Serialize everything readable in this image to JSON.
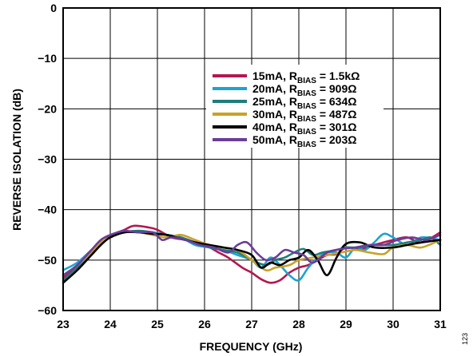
{
  "chart_data": {
    "type": "line",
    "xlabel": "FREQUENCY (GHz)",
    "ylabel": "REVERSE ISOLATION (dB)",
    "xlim": [
      23,
      31
    ],
    "ylim": [
      -60,
      0
    ],
    "xticks": [
      23,
      24,
      25,
      26,
      27,
      28,
      29,
      30,
      31
    ],
    "yticks": [
      0,
      -10,
      -20,
      -30,
      -40,
      -50,
      -60
    ],
    "ytick_labels": [
      "0",
      "−10",
      "−20",
      "−30",
      "−40",
      "−50",
      "−60"
    ],
    "grid": true,
    "legend_position": "upper-right",
    "figure_id": "123",
    "series": [
      {
        "legend_main": "15mA, R",
        "legend_sub": "BIAS",
        "legend_tail": " = 1.5kΩ",
        "color": "#b5174f",
        "x": [
          23.0,
          23.3,
          23.6,
          23.8,
          24.0,
          24.3,
          24.5,
          24.8,
          25.0,
          25.3,
          25.6,
          26.0,
          26.3,
          26.5,
          26.8,
          27.0,
          27.2,
          27.4,
          27.6,
          27.8,
          28.0,
          28.2,
          28.4,
          28.6,
          28.8,
          29.0,
          29.3,
          29.6,
          30.0,
          30.3,
          30.6,
          31.0
        ],
        "y": [
          -53.5,
          -51.5,
          -49.0,
          -46.8,
          -45.2,
          -44.0,
          -43.2,
          -43.5,
          -44.0,
          -45.5,
          -46.0,
          -47.0,
          -48.5,
          -49.5,
          -51.5,
          -52.5,
          -53.8,
          -54.5,
          -54.0,
          -52.5,
          -51.5,
          -51.0,
          -50.0,
          -49.0,
          -48.8,
          -47.5,
          -47.8,
          -47.0,
          -46.0,
          -45.5,
          -46.5,
          -44.5
        ]
      },
      {
        "legend_main": "20mA, R",
        "legend_sub": "BIAS",
        "legend_tail": " = 909Ω",
        "color": "#1ba3d3",
        "x": [
          23.0,
          23.3,
          23.6,
          23.8,
          24.0,
          24.3,
          24.6,
          24.9,
          25.2,
          25.5,
          25.8,
          26.1,
          26.4,
          26.7,
          27.0,
          27.2,
          27.4,
          27.6,
          27.8,
          28.0,
          28.2,
          28.4,
          28.6,
          28.8,
          29.0,
          29.2,
          29.4,
          29.6,
          29.8,
          30.0,
          30.3,
          30.6,
          31.0
        ],
        "y": [
          -52.0,
          -50.5,
          -48.0,
          -46.5,
          -45.5,
          -44.5,
          -44.2,
          -44.5,
          -45.0,
          -45.5,
          -47.0,
          -47.5,
          -48.0,
          -49.0,
          -50.0,
          -51.5,
          -49.5,
          -51.0,
          -53.0,
          -54.0,
          -51.5,
          -49.5,
          -48.5,
          -48.5,
          -49.5,
          -47.5,
          -48.0,
          -46.5,
          -44.8,
          -45.5,
          -47.0,
          -45.5,
          -46.0
        ]
      },
      {
        "legend_main": "25mA, R",
        "legend_sub": "BIAS",
        "legend_tail": " = 634Ω",
        "color": "#1f7d7a",
        "x": [
          23.0,
          23.3,
          23.6,
          23.8,
          24.0,
          24.3,
          24.6,
          24.9,
          25.2,
          25.5,
          25.8,
          26.1,
          26.4,
          26.7,
          27.0,
          27.3,
          27.5,
          27.7,
          27.9,
          28.1,
          28.3,
          28.5,
          28.8,
          29.0,
          29.3,
          29.6,
          30.0,
          30.3,
          30.6,
          30.8,
          31.0
        ],
        "y": [
          -54.0,
          -51.5,
          -48.5,
          -46.8,
          -45.5,
          -44.5,
          -44.2,
          -44.5,
          -45.0,
          -45.5,
          -46.5,
          -47.5,
          -48.0,
          -48.5,
          -50.0,
          -51.0,
          -50.0,
          -49.5,
          -48.5,
          -47.8,
          -49.0,
          -48.5,
          -48.0,
          -47.5,
          -47.5,
          -47.0,
          -47.0,
          -46.5,
          -46.0,
          -45.5,
          -47.0
        ]
      },
      {
        "legend_main": "30mA, R",
        "legend_sub": "BIAS",
        "legend_tail": " = 487Ω",
        "color": "#c9a227",
        "x": [
          23.0,
          23.3,
          23.6,
          23.8,
          24.0,
          24.3,
          24.6,
          24.9,
          25.2,
          25.5,
          25.8,
          26.1,
          26.4,
          26.7,
          27.0,
          27.3,
          27.5,
          27.8,
          28.0,
          28.3,
          28.6,
          28.9,
          29.2,
          29.5,
          29.8,
          30.0,
          30.3,
          30.6,
          31.0
        ],
        "y": [
          -53.0,
          -51.0,
          -48.5,
          -46.5,
          -45.5,
          -44.5,
          -44.5,
          -45.0,
          -45.5,
          -45.0,
          -46.0,
          -47.0,
          -47.5,
          -48.0,
          -50.0,
          -52.0,
          -51.5,
          -51.0,
          -50.0,
          -49.5,
          -49.0,
          -48.5,
          -48.0,
          -48.5,
          -48.8,
          -47.5,
          -47.0,
          -47.5,
          -46.0
        ]
      },
      {
        "legend_main": "40mA, R",
        "legend_sub": "BIAS",
        "legend_tail": " = 301Ω",
        "color": "#000000",
        "x": [
          23.0,
          23.3,
          23.6,
          23.8,
          24.0,
          24.3,
          24.6,
          24.9,
          25.2,
          25.5,
          25.8,
          26.1,
          26.4,
          26.7,
          27.0,
          27.2,
          27.4,
          27.6,
          27.8,
          28.0,
          28.2,
          28.4,
          28.6,
          28.8,
          29.0,
          29.3,
          29.6,
          30.0,
          30.3,
          30.6,
          31.0
        ],
        "y": [
          -54.5,
          -52.0,
          -49.0,
          -47.0,
          -45.5,
          -44.5,
          -44.5,
          -44.8,
          -45.0,
          -45.8,
          -46.5,
          -47.0,
          -47.5,
          -48.0,
          -49.0,
          -51.5,
          -50.5,
          -51.0,
          -50.0,
          -49.5,
          -48.0,
          -50.0,
          -53.0,
          -49.5,
          -46.8,
          -46.5,
          -47.5,
          -47.5,
          -47.0,
          -46.5,
          -46.0
        ]
      },
      {
        "legend_main": "50mA, R",
        "legend_sub": "BIAS",
        "legend_tail": " = 203Ω",
        "color": "#6a3d9a",
        "x": [
          23.0,
          23.3,
          23.6,
          23.8,
          24.0,
          24.3,
          24.6,
          24.9,
          25.1,
          25.3,
          25.6,
          25.9,
          26.2,
          26.5,
          26.7,
          26.9,
          27.1,
          27.3,
          27.5,
          27.7,
          27.9,
          28.1,
          28.3,
          28.6,
          28.9,
          29.2,
          29.5,
          29.8,
          30.1,
          30.4,
          30.7,
          31.0
        ],
        "y": [
          -53.0,
          -51.0,
          -48.0,
          -46.0,
          -45.0,
          -44.2,
          -44.5,
          -44.5,
          -46.0,
          -45.5,
          -46.0,
          -47.0,
          -47.5,
          -48.5,
          -47.0,
          -46.5,
          -48.5,
          -50.0,
          -49.5,
          -48.0,
          -48.5,
          -49.0,
          -50.5,
          -48.5,
          -47.8,
          -47.5,
          -47.0,
          -47.0,
          -46.0,
          -45.5,
          -46.0,
          -45.0
        ]
      }
    ]
  }
}
